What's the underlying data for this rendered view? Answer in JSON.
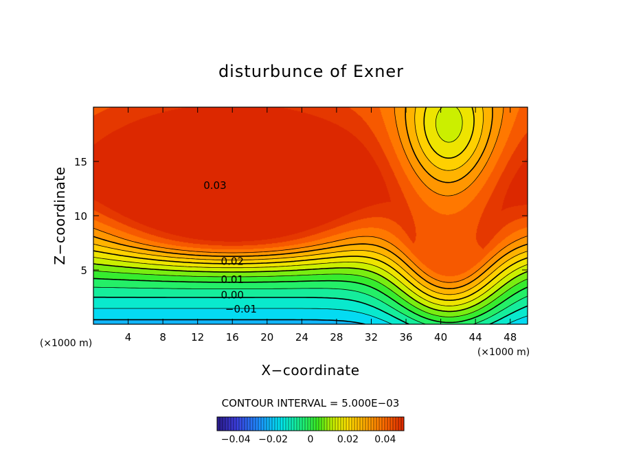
{
  "chart_data": {
    "type": "heatmap",
    "title": "disturbunce of Exner",
    "xlabel": "X−coordinate",
    "ylabel": "Z−coordinate",
    "x_unit": "(×1000 m)",
    "y_unit": "(×1000 m)",
    "xlim": [
      0,
      50
    ],
    "ylim": [
      0,
      20
    ],
    "x_ticks": [
      4,
      8,
      12,
      16,
      20,
      24,
      28,
      32,
      36,
      40,
      44,
      48
    ],
    "y_ticks": [
      5,
      10,
      15
    ],
    "contour_interval_text": "CONTOUR INTERVAL = 5.000E−03",
    "contour_labels": [
      {
        "text": "0.03",
        "x": 14,
        "z": 12.8
      },
      {
        "text": "0.02",
        "x": 16,
        "z": 5.8
      },
      {
        "text": "0.01",
        "x": 16,
        "z": 4.1
      },
      {
        "text": "0.00",
        "x": 16,
        "z": 2.7
      },
      {
        "text": "−0.01",
        "x": 17,
        "z": 1.4
      }
    ],
    "colorbar": {
      "min": -0.05,
      "max": 0.05,
      "ticks": [
        -0.04,
        -0.02,
        0,
        0.02,
        0.04
      ],
      "tick_labels": [
        "−0.04",
        "−0.02",
        "0",
        "0.02",
        "0.04"
      ]
    },
    "field_summary": {
      "max_value": 0.034,
      "max_location": [
        16,
        11.5
      ],
      "min_value": -0.02,
      "min_location": [
        42,
        0
      ]
    },
    "colors": {
      "low": "#2a1a8a",
      "mid": "#22ee22",
      "high": "#ff4400"
    }
  }
}
